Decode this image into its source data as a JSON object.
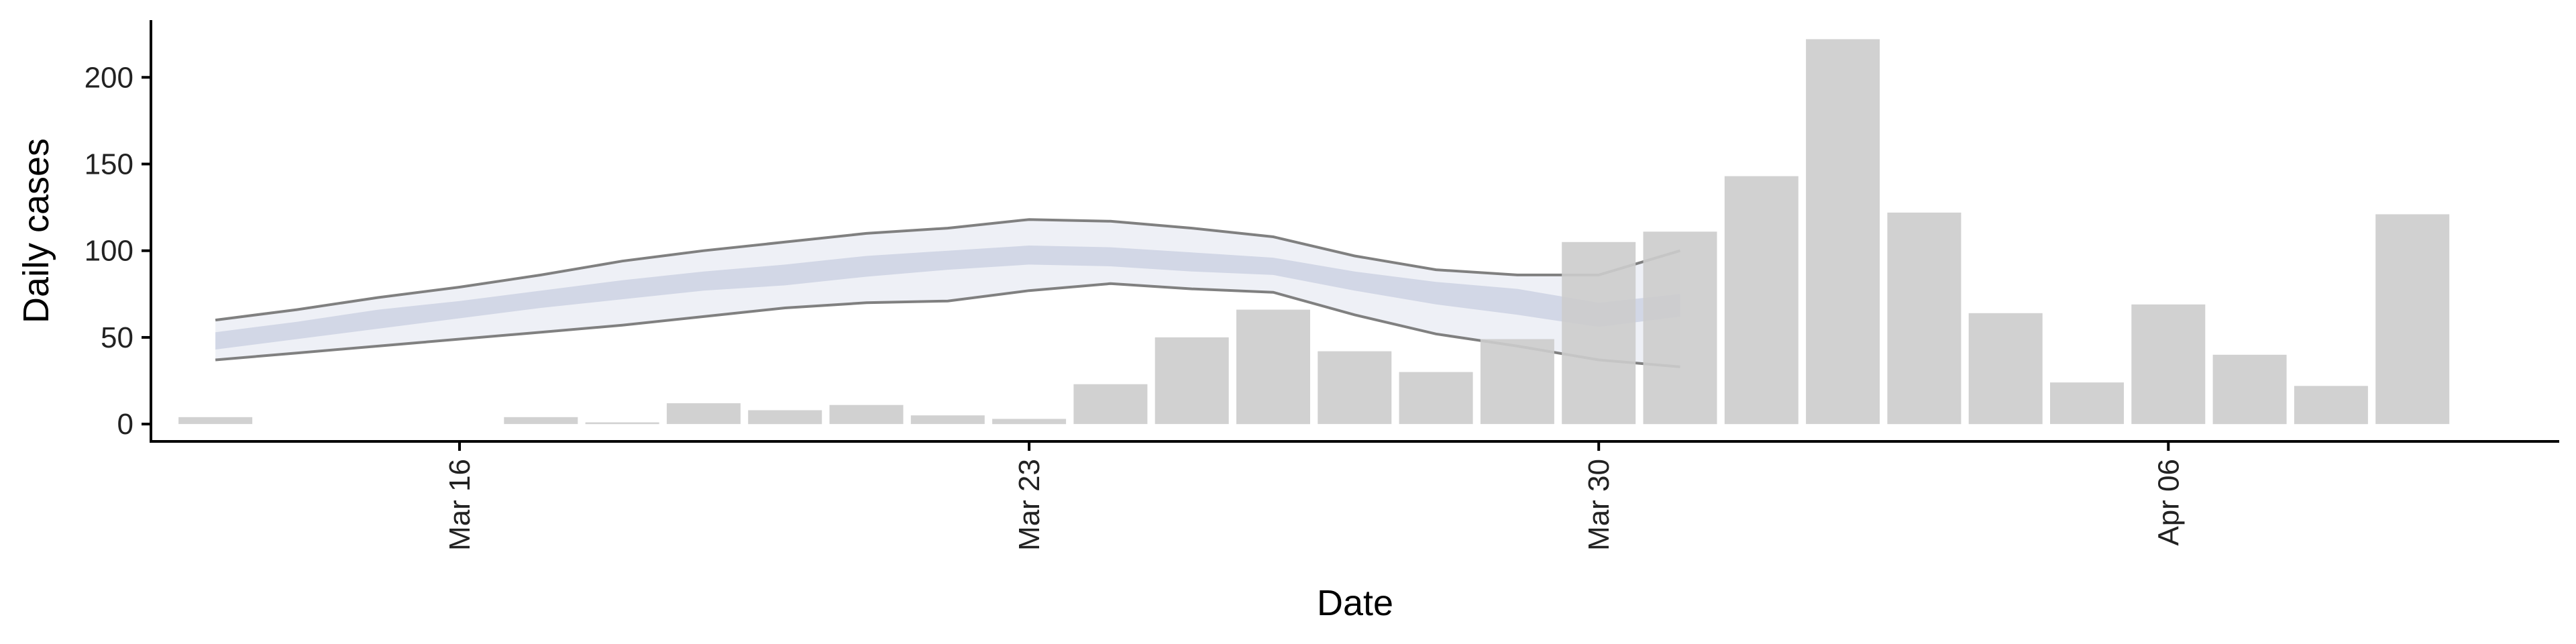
{
  "chart_data": {
    "type": "bar",
    "xlabel": "Date",
    "ylabel": "Daily cases",
    "ylim": [
      -10,
      233
    ],
    "yticks": [
      0,
      50,
      100,
      150,
      200
    ],
    "xticks": [
      {
        "date": "2020-03-16",
        "label": "Mar 16"
      },
      {
        "date": "2020-03-23",
        "label": "Mar 23"
      },
      {
        "date": "2020-03-30",
        "label": "Mar 30"
      },
      {
        "date": "2020-04-06",
        "label": "Apr 06"
      }
    ],
    "grid": false,
    "legend": "none",
    "colors": {
      "bars": "#cccccc",
      "band_outer": "#eef0f6",
      "band_inner": "#d2d7e6",
      "band_lines": "#808080",
      "axis": "#000000"
    },
    "bars": [
      {
        "date": "2020-03-13",
        "value": 4
      },
      {
        "date": "2020-03-16",
        "value": 0
      },
      {
        "date": "2020-03-17",
        "value": 4
      },
      {
        "date": "2020-03-18",
        "value": 1
      },
      {
        "date": "2020-03-19",
        "value": 12
      },
      {
        "date": "2020-03-20",
        "value": 8
      },
      {
        "date": "2020-03-21",
        "value": 11
      },
      {
        "date": "2020-03-22",
        "value": 5
      },
      {
        "date": "2020-03-23",
        "value": 3
      },
      {
        "date": "2020-03-24",
        "value": 23
      },
      {
        "date": "2020-03-25",
        "value": 50
      },
      {
        "date": "2020-03-26",
        "value": 66
      },
      {
        "date": "2020-03-27",
        "value": 42
      },
      {
        "date": "2020-03-28",
        "value": 30
      },
      {
        "date": "2020-03-29",
        "value": 49
      },
      {
        "date": "2020-03-30",
        "value": 105
      },
      {
        "date": "2020-03-31",
        "value": 111
      },
      {
        "date": "2020-04-01",
        "value": 143
      },
      {
        "date": "2020-04-02",
        "value": 222
      },
      {
        "date": "2020-04-03",
        "value": 122
      },
      {
        "date": "2020-04-04",
        "value": 64
      },
      {
        "date": "2020-04-05",
        "value": 24
      },
      {
        "date": "2020-04-06",
        "value": 69
      },
      {
        "date": "2020-04-07",
        "value": 40
      },
      {
        "date": "2020-04-08",
        "value": 22
      },
      {
        "date": "2020-04-09",
        "value": 121
      }
    ],
    "estimate_band": {
      "dates": [
        "2020-03-13",
        "2020-03-14",
        "2020-03-15",
        "2020-03-16",
        "2020-03-17",
        "2020-03-18",
        "2020-03-19",
        "2020-03-20",
        "2020-03-21",
        "2020-03-22",
        "2020-03-23",
        "2020-03-24",
        "2020-03-25",
        "2020-03-26",
        "2020-03-27",
        "2020-03-28",
        "2020-03-29",
        "2020-03-30",
        "2020-03-31"
      ],
      "outer_lower": [
        37,
        41,
        45,
        49,
        53,
        57,
        62,
        67,
        70,
        71,
        77,
        81,
        78,
        76,
        63,
        52,
        45,
        37,
        33
      ],
      "outer_upper": [
        60,
        66,
        73,
        79,
        86,
        94,
        100,
        105,
        110,
        113,
        118,
        117,
        113,
        108,
        97,
        89,
        86,
        86,
        100
      ],
      "inner_lower": [
        43,
        49,
        55,
        61,
        67,
        72,
        77,
        80,
        85,
        89,
        92,
        91,
        88,
        86,
        77,
        69,
        63,
        56,
        62
      ],
      "inner_upper": [
        53,
        59,
        66,
        71,
        77,
        83,
        88,
        92,
        97,
        100,
        103,
        102,
        99,
        96,
        88,
        82,
        78,
        70,
        75
      ]
    }
  }
}
